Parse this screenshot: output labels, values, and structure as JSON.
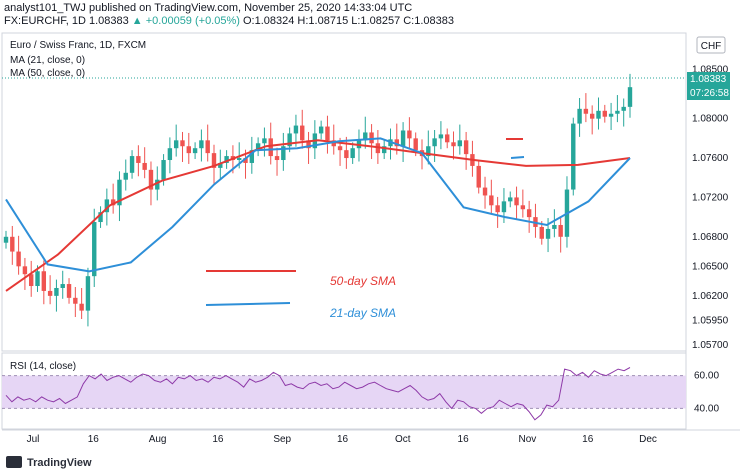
{
  "header": {
    "line1": "analyst101_TWJ published on TradingView.com, November 25, 2020 14:33:04 UTC",
    "symbol": "FX:EURCHF, 1D",
    "last": "1.08383",
    "change": "▲ +0.00059 (+0.05%)",
    "ohlc": "O:1.08324 H:1.08715 L:1.08257 C:1.08383"
  },
  "legend": {
    "title": "Euro / Swiss Franc, 1D, FXCM",
    "ma21": "MA (21, close, 0)",
    "ma50": "MA (50, close, 0)"
  },
  "currency_badge": "CHF",
  "price_label": "1.08383",
  "countdown_label": "07:26:58",
  "annotations": {
    "sma50": "50-day SMA",
    "sma21": "21-day SMA"
  },
  "rsi_legend": "RSI (14, close)",
  "footer": {
    "brand": "TradingView"
  },
  "colors": {
    "up": "#26a69a",
    "down": "#ef5350",
    "ma21": "#2e8fd8",
    "ma50": "#e53935",
    "rsi_line": "#8e3aa8",
    "rsi_band": "#e6d6f5"
  },
  "chart_data": [
    {
      "type": "candlestick",
      "title": "Euro / Swiss Franc, 1D, FXCM",
      "y_ticks": [
        1.085,
        1.08,
        1.076,
        1.072,
        1.068,
        1.065,
        1.062,
        1.0595,
        1.057
      ],
      "y_tick_labels": [
        "1.08500",
        "1.08000",
        "1.07600",
        "1.07200",
        "1.06800",
        "1.06500",
        "1.06200",
        "1.05950",
        "1.05700"
      ],
      "ylim": [
        1.0565,
        1.0885
      ],
      "x_tick_labels": [
        "Jul",
        "16",
        "Aug",
        "16",
        "Sep",
        "16",
        "Oct",
        "16",
        "Nov",
        "16",
        "Dec"
      ],
      "x_tick_days": [
        0,
        15,
        31,
        46,
        62,
        77,
        92,
        107,
        123,
        138,
        153
      ],
      "last_price": 1.08383,
      "series_closes_approx": [
        1.068,
        1.0665,
        1.065,
        1.0642,
        1.063,
        1.0645,
        1.0625,
        1.062,
        1.0628,
        1.0632,
        1.0618,
        1.0612,
        1.0605,
        1.064,
        1.0695,
        1.0705,
        1.0718,
        1.0712,
        1.0738,
        1.0745,
        1.0762,
        1.0755,
        1.0748,
        1.0728,
        1.0738,
        1.0758,
        1.077,
        1.0778,
        1.0772,
        1.0765,
        1.077,
        1.0778,
        1.0765,
        1.075,
        1.0755,
        1.0762,
        1.0758,
        1.076,
        1.0755,
        1.0768,
        1.0775,
        1.078,
        1.0762,
        1.0758,
        1.0772,
        1.0785,
        1.0793,
        1.0778,
        1.077,
        1.0785,
        1.0792,
        1.0778,
        1.0772,
        1.0768,
        1.076,
        1.077,
        1.0778,
        1.0786,
        1.0775,
        1.0765,
        1.0772,
        1.0779,
        1.0772,
        1.0788,
        1.078,
        1.0768,
        1.0762,
        1.0772,
        1.078,
        1.0784,
        1.0776,
        1.0772,
        1.0778,
        1.0764,
        1.0752,
        1.073,
        1.0722,
        1.0712,
        1.0705,
        1.0716,
        1.072,
        1.0712,
        1.0708,
        1.07,
        1.069,
        1.0678,
        1.0688,
        1.0692,
        1.068,
        1.0728,
        1.0795,
        1.081,
        1.0805,
        1.08,
        1.0808,
        1.0802,
        1.0805,
        1.0808,
        1.0812,
        1.0832
      ],
      "series": [
        {
          "name": "MA (21, close, 0)",
          "values_approx": [
            1.0718,
            1.0652,
            1.0645,
            1.0654,
            1.069,
            1.0733,
            1.0768,
            1.077,
            1.0777,
            1.078,
            1.0765,
            1.071,
            1.07,
            1.0692,
            1.0716,
            1.076
          ]
        },
        {
          "name": "MA (50, close, 0)",
          "values_approx": [
            1.0625,
            1.0662,
            1.0712,
            1.0737,
            1.0752,
            1.0772,
            1.0778,
            1.0772,
            1.0765,
            1.0758,
            1.0752,
            1.0753,
            1.076
          ]
        }
      ]
    },
    {
      "type": "line",
      "title": "RSI (14, close)",
      "y_tick_labels": [
        "60.00",
        "40.00"
      ],
      "ylim": [
        28,
        72
      ],
      "band": [
        40,
        60
      ],
      "values_approx": [
        48,
        44,
        47,
        45,
        46,
        44,
        47,
        45,
        44,
        46,
        43,
        45,
        47,
        55,
        60,
        58,
        61,
        57,
        59,
        60,
        58,
        56,
        59,
        61,
        60,
        57,
        56,
        58,
        55,
        59,
        58,
        60,
        57,
        58,
        56,
        59,
        58,
        60,
        58,
        56,
        53,
        58,
        56,
        57,
        59,
        62,
        60,
        54,
        55,
        53,
        52,
        55,
        56,
        54,
        55,
        52,
        53,
        56,
        54,
        52,
        53,
        55,
        56,
        54,
        52,
        51,
        50,
        52,
        54,
        51,
        47,
        45,
        46,
        49,
        44,
        40,
        45,
        44,
        41,
        40,
        37,
        40,
        41,
        45,
        43,
        41,
        43,
        42,
        38,
        33,
        36,
        42,
        41,
        45,
        64,
        63,
        60,
        62,
        59,
        63,
        61,
        60,
        62,
        64,
        63,
        65
      ]
    }
  ]
}
